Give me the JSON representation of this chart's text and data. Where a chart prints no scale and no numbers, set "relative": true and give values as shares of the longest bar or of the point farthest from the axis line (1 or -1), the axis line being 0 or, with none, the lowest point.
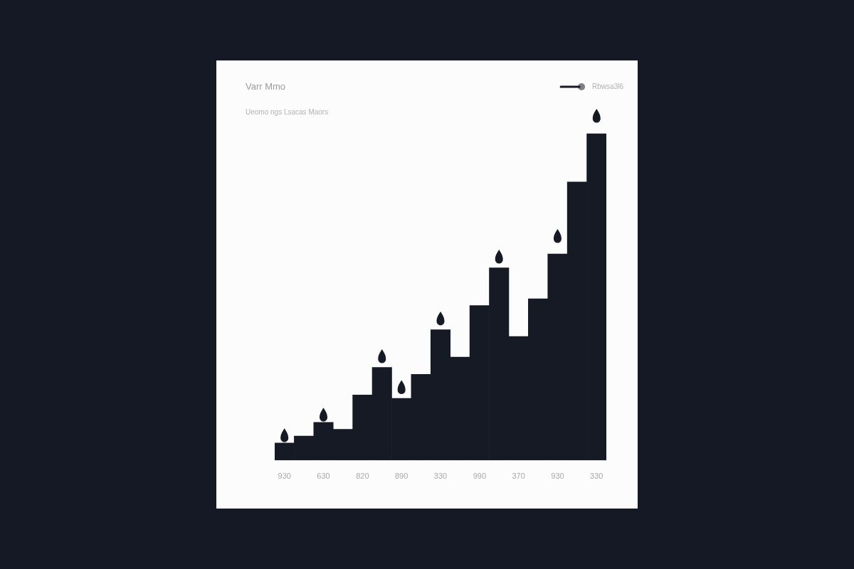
{
  "chart_data": {
    "type": "bar",
    "title": "Varr Mmo",
    "subtitle": "Ueomo ngs Lsacas Maors",
    "relative": true,
    "legend": "top right",
    "categories": [
      "930",
      null,
      "630",
      null,
      "820",
      null,
      "890",
      null,
      "330",
      null,
      "990",
      null,
      "370",
      null,
      "930",
      null,
      "330"
    ],
    "series": [
      {
        "name": "Rbwsa3l6",
        "color": "#161a25",
        "values": [
          0.05,
          0.07,
          0.11,
          0.09,
          0.19,
          0.27,
          0.18,
          0.25,
          0.38,
          0.3,
          0.45,
          0.56,
          0.36,
          0.47,
          0.6,
          0.81,
          0.95
        ]
      },
      {
        "type": "scatter",
        "color": "#161a25",
        "values": [
          0.07,
          null,
          0.13,
          null,
          null,
          0.3,
          0.21,
          null,
          0.41,
          null,
          null,
          0.59,
          null,
          null,
          0.65,
          null,
          1
        ]
      }
    ]
  }
}
